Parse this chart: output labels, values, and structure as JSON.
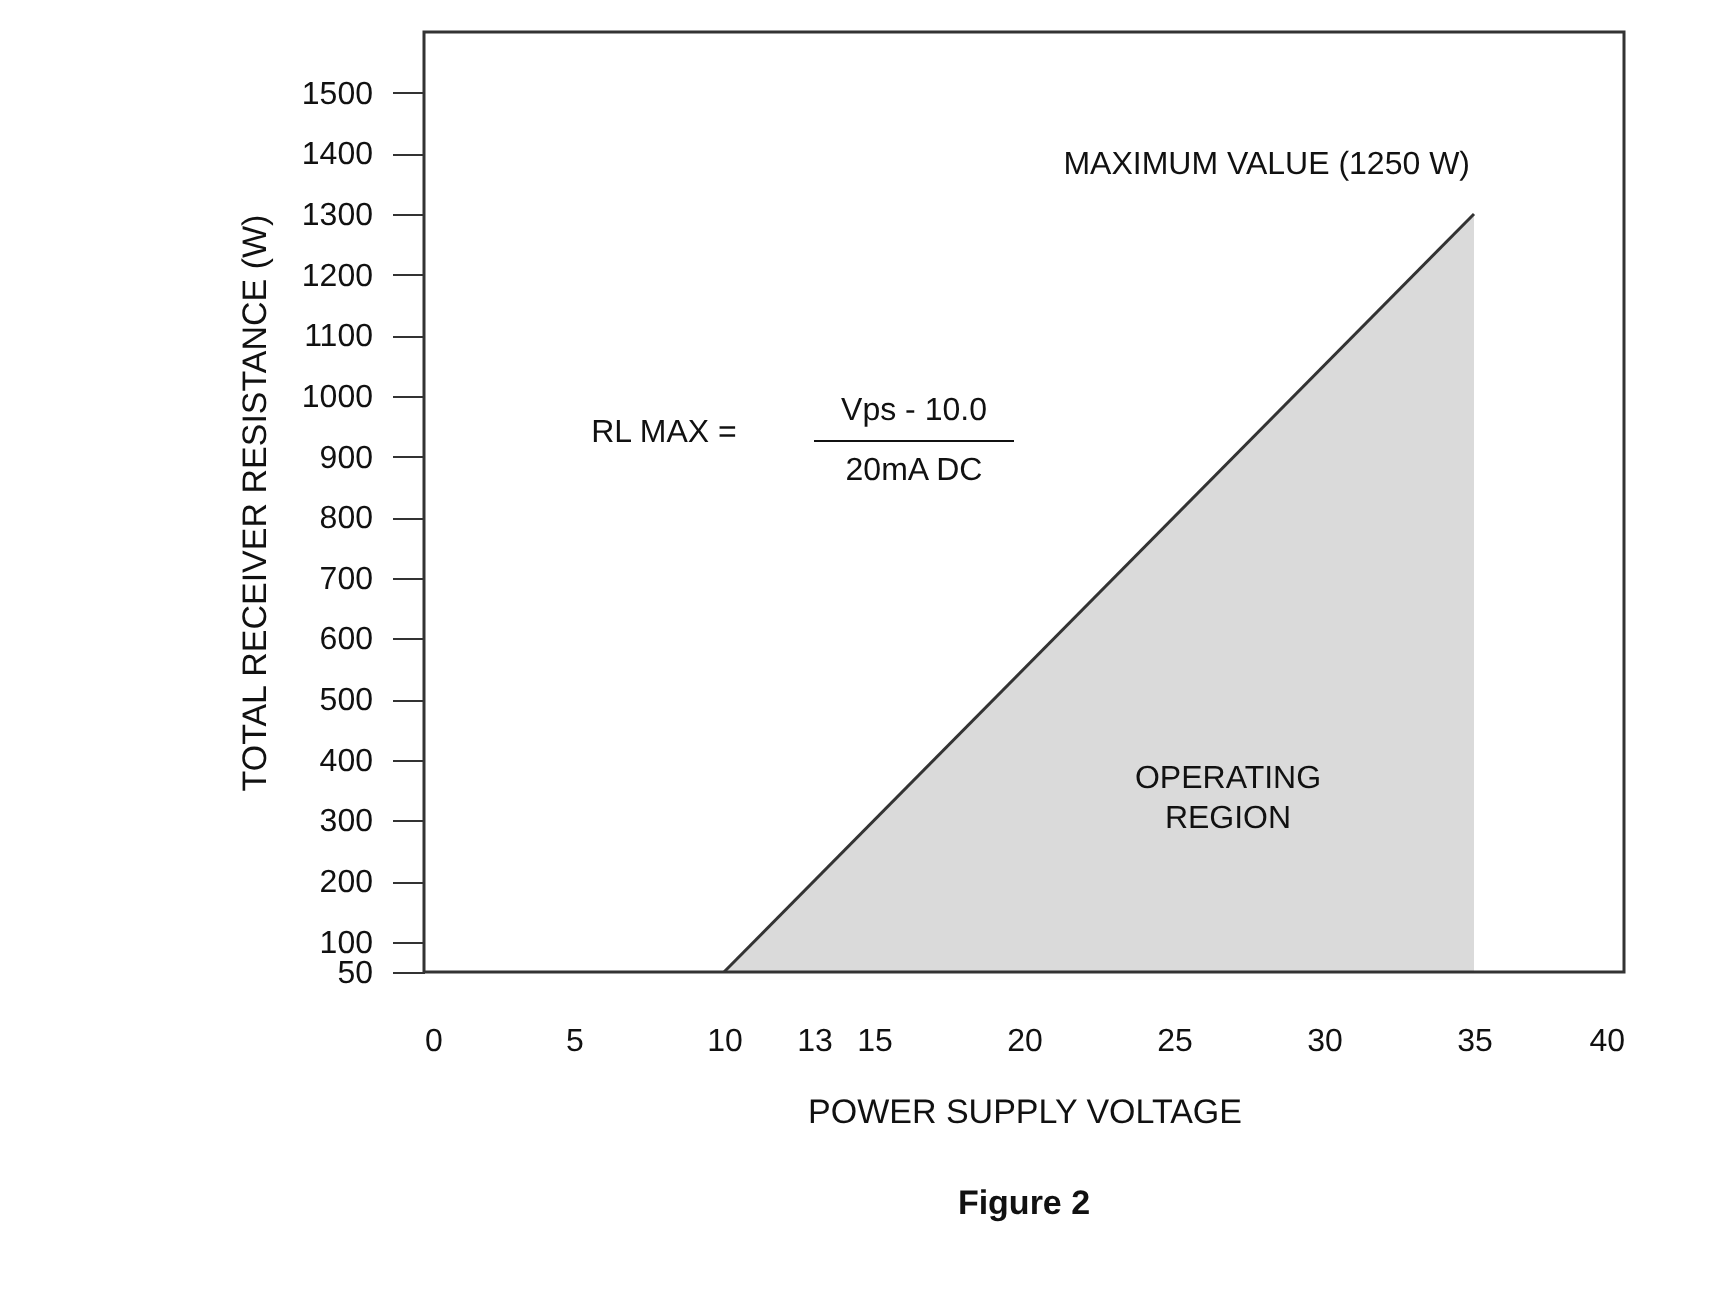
{
  "chart_data": {
    "type": "area",
    "title": "Figure 2",
    "xlabel": "POWER SUPPLY VOLTAGE",
    "ylabel": "TOTAL RECEIVER RESISTANCE (W)",
    "x": [
      10,
      35
    ],
    "series": [
      {
        "color": "#333333",
        "values": [
          50,
          1300
        ]
      }
    ],
    "xlim": [
      0,
      40
    ],
    "xticks": [
      0,
      5,
      10,
      13,
      15,
      20,
      25,
      30,
      35,
      40
    ],
    "ylim": [
      50,
      1600
    ],
    "yticks": [
      50,
      100,
      200,
      300,
      400,
      500,
      600,
      700,
      800,
      900,
      1000,
      1100,
      1200,
      1300,
      1400,
      1500
    ],
    "grid": false,
    "annotations": [
      {
        "text": "MAXIMUM VALUE (1250 W)",
        "x": 35,
        "y": 1300
      },
      "RL MAX =",
      "Vps - 10.0",
      "20mA DC",
      "OPERATING REGION"
    ]
  }
}
